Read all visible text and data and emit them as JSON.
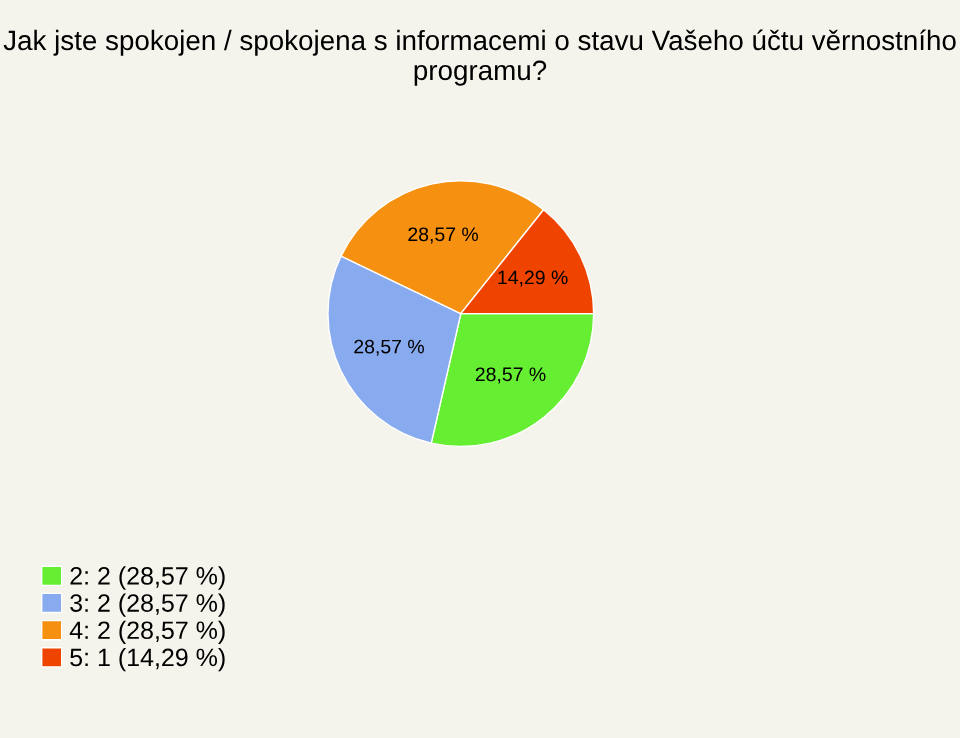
{
  "chart_data": {
    "type": "pie",
    "title": "Jak jste spokojen / spokojena s informacemi o stavu Vašeho účtu věrnostního programu?",
    "categories": [
      "2: 2 (28,57 %)",
      "3: 2 (28,57 %)",
      "4: 2 (28,57 %)",
      "5: 1 (14,29 %)"
    ],
    "values": [
      28.57,
      28.57,
      28.57,
      14.29
    ],
    "value_labels": [
      "28,57 %",
      "28,57 %",
      "28,57 %",
      "14,29 %"
    ],
    "colors": [
      "#66ee33",
      "#88aaee",
      "#f59010",
      "#ee4400"
    ],
    "legend": "bottom left"
  }
}
